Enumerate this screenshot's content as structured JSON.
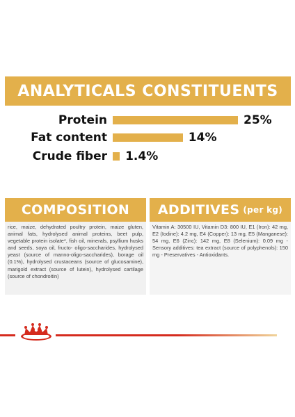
{
  "analytical": {
    "title": "ANALYTICALS CONSTITUENTS",
    "rows": [
      {
        "label": "Protein",
        "value": "25%",
        "level": 25
      },
      {
        "label": "Fat content",
        "value": "14%",
        "level": 14
      },
      {
        "label": "Crude fiber",
        "value": "1.4%",
        "level": 1.4
      }
    ]
  },
  "composition": {
    "title": "COMPOSITION",
    "text": "rice, maize, dehydrated poultry protein, maize gluten, animal fats, hydrolysed animal proteins, beet pulp, vegetable protein isolate*, fish oil, minerals, psyllium husks and seeds, soya oil, fructo- oligo-saccharides, hydrolysed yeast (source of manno-oligo-saccharides), borage oil (0.1%), hydrolysed crustaceans (source of glucosamine), marigold extract (source of lutein), hydrolysed cartilage (source of chondroitin)"
  },
  "additives": {
    "title": "ADDITIVES",
    "unit": "(per kg)",
    "text": "Vitamin A: 30500 IU, Vitamin D3: 800 IU, E1 (Iron): 42 mg, E2 (Iodine): 4.2 mg, E4 (Copper): 13 mg, E5 (Manganese): 54 mg, E6 (Zinc): 142 mg, E8 (Selenium): 0.09 mg - Sensory additives: tea extract (source of polyphenols): 150 mg - Preservatives - Antioxidants."
  },
  "colors": {
    "accent": "#e3b04b",
    "brand_red": "#d52b1e",
    "panel_bg": "#f1f1f1"
  },
  "logo_icon": "royal-canin-crown-logo-icon"
}
